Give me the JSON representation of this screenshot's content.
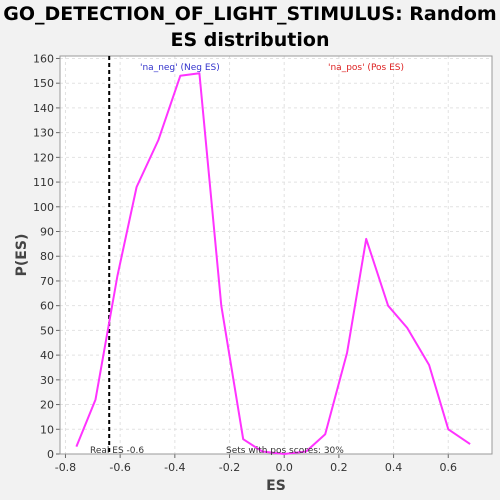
{
  "chart_data": {
    "type": "line",
    "title_line1": "GO_DETECTION_OF_LIGHT_STIMULUS: Random",
    "title_line2": "ES distribution",
    "xlabel": "ES",
    "ylabel": "P(ES)",
    "xlim": [
      -0.82,
      0.76
    ],
    "ylim": [
      0,
      161
    ],
    "xticks": [
      -0.8,
      -0.6,
      -0.4,
      -0.2,
      0.0,
      0.2,
      0.4,
      0.6
    ],
    "xtick_labels": [
      "-0.8",
      "-0.6",
      "-0.4",
      "-0.2",
      "0.0",
      "0.2",
      "0.4",
      "0.6"
    ],
    "yticks": [
      0,
      10,
      20,
      30,
      40,
      50,
      60,
      70,
      80,
      90,
      100,
      110,
      120,
      130,
      140,
      150,
      160
    ],
    "ytick_labels": [
      "0",
      "10",
      "20",
      "30",
      "40",
      "50",
      "60",
      "70",
      "80",
      "90",
      "100",
      "110",
      "120",
      "130",
      "140",
      "150",
      "160"
    ],
    "grid": true,
    "series": [
      {
        "color": "#ff33ff",
        "x": [
          -0.76,
          -0.69,
          -0.61,
          -0.54,
          -0.46,
          -0.38,
          -0.31,
          -0.23,
          -0.15,
          -0.08,
          0.0,
          0.08,
          0.15,
          0.23,
          0.3,
          0.38,
          0.45,
          0.53,
          0.6,
          0.68
        ],
        "y": [
          3,
          22,
          72,
          108,
          127,
          153,
          154,
          60,
          6,
          1,
          0,
          1,
          8,
          41,
          87,
          60,
          51,
          36,
          10,
          4
        ]
      }
    ],
    "real_es": {
      "value": -0.64,
      "label": "Real ES -0.6"
    },
    "annotations": {
      "neg_label": "'na_neg' (Neg ES)",
      "pos_label": "'na_pos' (Pos ES)",
      "pos_scores_label": "Sets with pos scores: 30%"
    },
    "colors": {
      "line": "#ff33ff",
      "neg_label": "#3333cc",
      "pos_label": "#dd2222",
      "grid": "#e2e2e2",
      "plot_bg": "#ffffff",
      "page_bg": "#f2f2f2"
    }
  }
}
